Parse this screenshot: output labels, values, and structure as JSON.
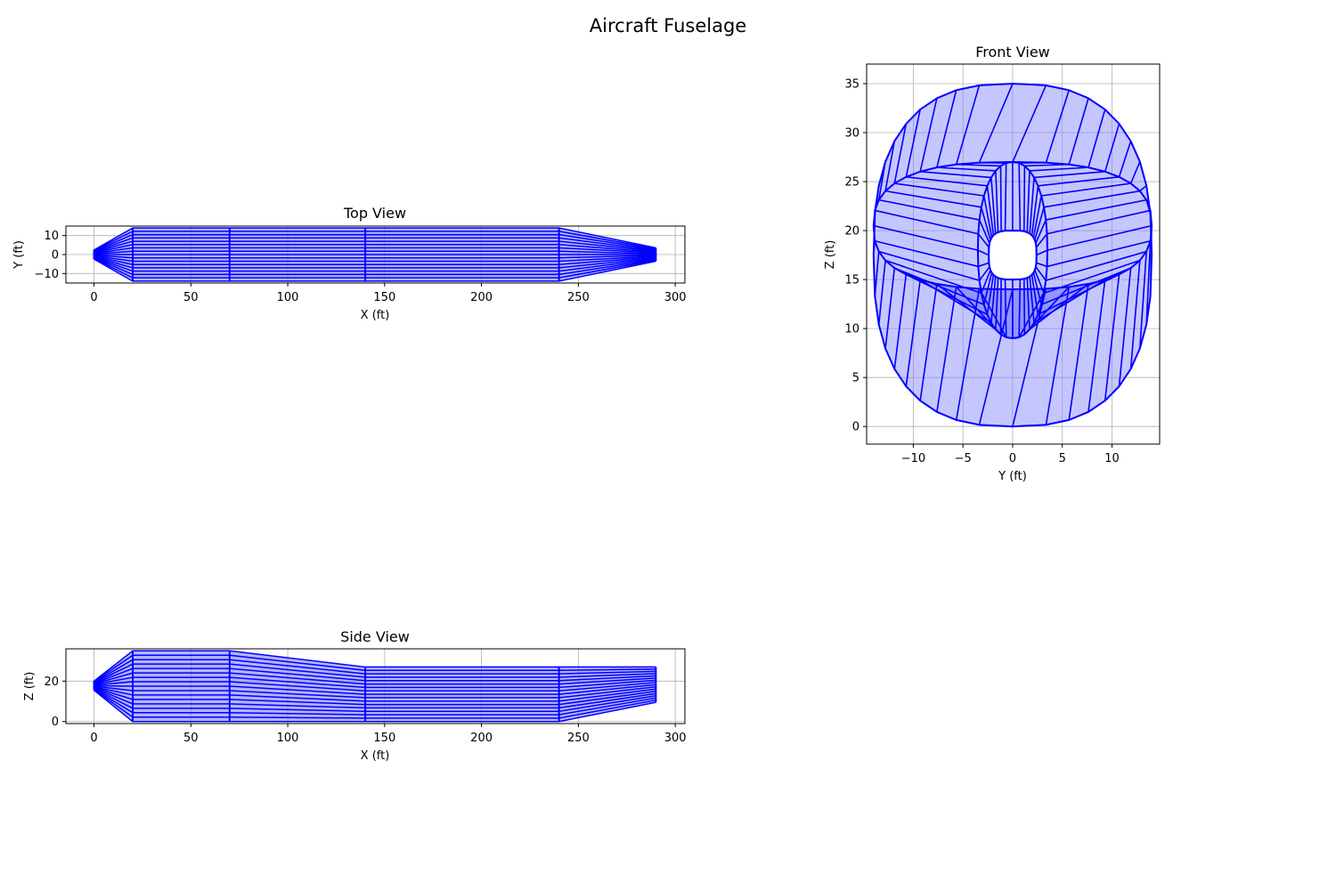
{
  "figure": {
    "title": "Aircraft Fuselage"
  },
  "colors": {
    "edge": "#0000ff",
    "face": "#8080ff",
    "grid": "#b0b0b0",
    "frame": "#000000"
  },
  "chart_data": [
    {
      "id": "top",
      "type": "line",
      "title": "Top View",
      "xlabel": "X (ft)",
      "ylabel": "Y (ft)",
      "xlim": [
        -14.5,
        305
      ],
      "ylim": [
        -15,
        15
      ],
      "xticks": [
        0,
        50,
        100,
        150,
        200,
        250,
        300
      ],
      "yticks": [
        -10,
        0,
        10
      ],
      "grid": true,
      "stations_x": [
        0,
        20,
        70,
        140,
        240,
        290
      ],
      "half_width": [
        2.4,
        14,
        14,
        14,
        14,
        3.5
      ],
      "line_fraction": [
        -1,
        -0.875,
        -0.75,
        -0.625,
        -0.5,
        -0.375,
        -0.25,
        -0.125,
        0,
        0.125,
        0.25,
        0.375,
        0.5,
        0.625,
        0.75,
        0.875,
        1
      ]
    },
    {
      "id": "side",
      "type": "line",
      "title": "Side View",
      "xlabel": "X (ft)",
      "ylabel": "Z (ft)",
      "xlim": [
        -14.5,
        305
      ],
      "ylim": [
        -1,
        36
      ],
      "xticks": [
        0,
        50,
        100,
        150,
        200,
        250,
        300
      ],
      "yticks": [
        0,
        20
      ],
      "grid": true,
      "stations_x": [
        0,
        20,
        70,
        140,
        240,
        290
      ],
      "z_top": [
        20,
        35,
        35,
        27,
        27,
        27
      ],
      "z_bottom": [
        15.5,
        0,
        0,
        0,
        0,
        9.5
      ],
      "line_fraction": [
        0,
        0.0625,
        0.125,
        0.1875,
        0.25,
        0.3125,
        0.375,
        0.4375,
        0.5,
        0.5625,
        0.625,
        0.6875,
        0.75,
        0.8125,
        0.875,
        0.9375,
        1
      ]
    },
    {
      "id": "front",
      "type": "line",
      "title": "Front View",
      "xlabel": "Y (ft)",
      "ylabel": "Z (ft)",
      "xlim": [
        -14.7,
        14.8
      ],
      "ylim": [
        -1.8,
        37
      ],
      "xticks": [
        -10,
        -5,
        0,
        5,
        10
      ],
      "yticks": [
        0,
        5,
        10,
        15,
        20,
        25,
        30,
        35
      ],
      "grid": true,
      "sections": [
        {
          "center_z": 17.5,
          "half_width": 14,
          "z_top": 35,
          "z_bottom": 0,
          "exponent": 2.6
        },
        {
          "center_z": 20.5,
          "half_width": 14,
          "z_top": 27,
          "z_bottom": 14,
          "exponent": 2.6
        },
        {
          "center_z": 18,
          "half_width": 3.5,
          "z_top": 27,
          "z_bottom": 9,
          "exponent": 2.2
        },
        {
          "center_z": 17.5,
          "half_width": 2.4,
          "z_top": 20,
          "z_bottom": 15,
          "exponent": 3.2
        }
      ],
      "points_per_section": 40
    }
  ]
}
